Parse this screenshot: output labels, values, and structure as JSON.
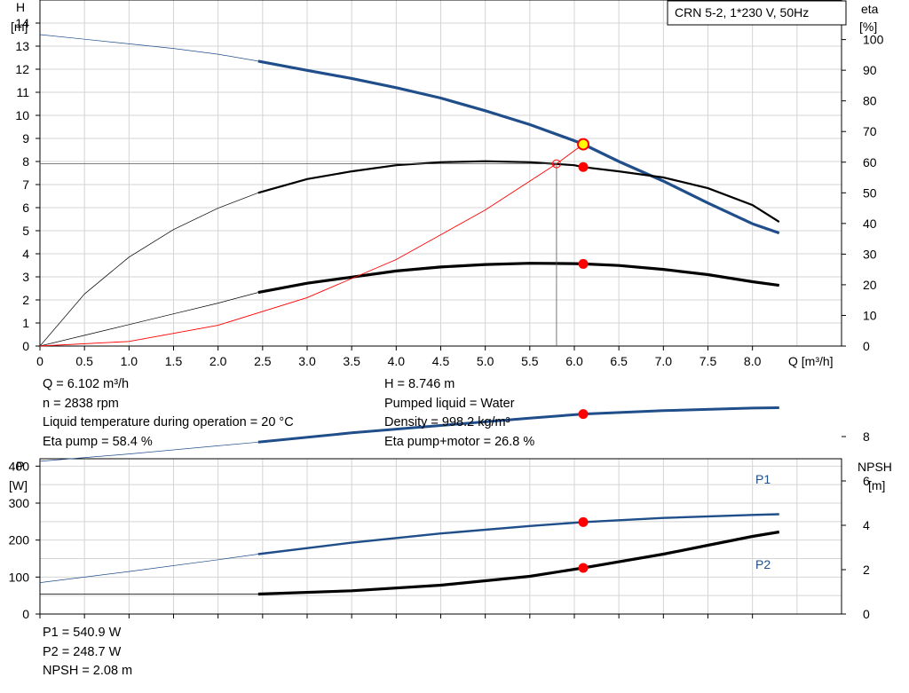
{
  "chart_data": [
    {
      "type": "line",
      "title": "CRN 5-2, 1*230 V, 50Hz",
      "xlabel": "Q [m³/h]",
      "ylabel_left": [
        "H",
        "[m]"
      ],
      "ylabel_right": [
        "eta",
        "[%]"
      ],
      "xlim": [
        0,
        9.0
      ],
      "ylim_left": [
        0,
        15
      ],
      "ylim_right": [
        0,
        100
      ],
      "grid": true,
      "x_ticks": [
        "0",
        "0.5",
        "1.0",
        "1.5",
        "2.0",
        "2.5",
        "3.0",
        "3.5",
        "4.0",
        "4.5",
        "5.0",
        "5.5",
        "6.0",
        "6.5",
        "7.0",
        "7.5",
        "8.0"
      ],
      "y_ticks_left": [
        "0",
        "1",
        "2",
        "3",
        "4",
        "5",
        "6",
        "7",
        "8",
        "9",
        "10",
        "11",
        "12",
        "13",
        "14"
      ],
      "y_ticks_right": [
        "0",
        "10",
        "20",
        "30",
        "40",
        "50",
        "60",
        "70",
        "80",
        "90",
        "100"
      ],
      "series": [
        {
          "id": "head",
          "axis": "left",
          "color": "#1f4e8a",
          "x": [
            0,
            0.5,
            1.0,
            1.5,
            2.0,
            2.45,
            3.0,
            3.5,
            4.0,
            4.5,
            5.0,
            5.5,
            6.0,
            6.1,
            6.5,
            7.0,
            7.5,
            8.0,
            8.3
          ],
          "y": [
            13.5,
            13.3,
            13.1,
            12.9,
            12.65,
            12.35,
            11.95,
            11.6,
            11.2,
            10.75,
            10.2,
            9.6,
            8.9,
            8.75,
            8.0,
            7.15,
            6.2,
            5.3,
            4.9
          ]
        },
        {
          "id": "eta-pump",
          "axis": "right",
          "color": "#000000",
          "x": [
            0,
            0.5,
            1.0,
            1.5,
            2.0,
            2.45,
            3.0,
            3.5,
            4.0,
            4.5,
            5.0,
            5.5,
            6.0,
            6.1,
            6.5,
            7.0,
            7.5,
            8.0,
            8.3
          ],
          "y": [
            0,
            17,
            29,
            38,
            45,
            50,
            54.5,
            57,
            59,
            60,
            60.3,
            60,
            59,
            58.4,
            57,
            55,
            51.5,
            46,
            40.5
          ]
        },
        {
          "id": "eta-pump-motor",
          "axis": "right",
          "color": "#000000",
          "x": [
            0,
            0.5,
            1.0,
            1.5,
            2.0,
            2.45,
            3.0,
            3.5,
            4.0,
            4.5,
            5.0,
            5.5,
            6.0,
            6.1,
            6.5,
            7.0,
            7.5,
            8.0,
            8.3
          ],
          "y": [
            0,
            3.5,
            7,
            10.5,
            14,
            17.5,
            20.5,
            22.5,
            24.5,
            25.8,
            26.6,
            27,
            26.9,
            26.8,
            26.3,
            25,
            23.3,
            21,
            19.8
          ]
        },
        {
          "id": "system-curve",
          "axis": "left",
          "color": "#ff0000",
          "x": [
            0,
            1.0,
            2.0,
            3.0,
            4.0,
            5.0,
            5.8,
            6.1
          ],
          "y": [
            0,
            0.2,
            0.9,
            2.1,
            3.75,
            5.9,
            7.9,
            8.75
          ]
        }
      ],
      "duty_point": {
        "x": 6.1,
        "y": 8.746
      },
      "eta_points": [
        58.4,
        26.8
      ],
      "requested_point": {
        "x": 5.8,
        "y": 7.9
      }
    },
    {
      "type": "line",
      "ylabel_left": [
        "P",
        "[W]"
      ],
      "ylabel_right": [
        "NPSH",
        "[m]"
      ],
      "xlim": [
        0,
        9.0
      ],
      "ylim_left": [
        0,
        600
      ],
      "ylim_right": [
        0,
        12
      ],
      "grid": true,
      "y_ticks_left": [
        "0",
        "100",
        "200",
        "300",
        "400"
      ],
      "y_ticks_right": [
        "0",
        "2",
        "4",
        "6",
        "8"
      ],
      "series": [
        {
          "id": "p1",
          "name": "P1",
          "axis": "left",
          "color": "#1f4e8a",
          "x": [
            0,
            1.0,
            2.0,
            2.45,
            3.5,
            4.5,
            5.5,
            6.1,
            7.0,
            8.0,
            8.3
          ],
          "y": [
            413,
            433,
            455,
            465,
            490,
            510,
            530,
            540.9,
            550,
            557,
            558
          ]
        },
        {
          "id": "p2",
          "name": "P2",
          "axis": "left",
          "color": "#1f4e8a",
          "x": [
            0,
            1.0,
            2.0,
            2.45,
            3.5,
            4.5,
            5.5,
            6.1,
            7.0,
            8.0,
            8.3
          ],
          "y": [
            85,
            115,
            147,
            162,
            193,
            218,
            238,
            248.7,
            260,
            268,
            270
          ]
        },
        {
          "id": "npsh",
          "axis": "right",
          "color": "#000000",
          "x": [
            0,
            1.0,
            2.0,
            2.45,
            3.5,
            4.5,
            5.5,
            6.1,
            7.0,
            7.5,
            8.0,
            8.3
          ],
          "y": [
            0.9,
            0.9,
            0.9,
            0.9,
            1.05,
            1.3,
            1.7,
            2.08,
            2.7,
            3.1,
            3.5,
            3.7
          ]
        }
      ],
      "points": {
        "x": 6.1,
        "p1": 540.9,
        "p2": 248.7,
        "npsh": 2.08
      }
    }
  ],
  "info_top_left": [
    "Q = 6.102 m³/h",
    "n = 2838 rpm",
    "Liquid temperature during operation = 20 °C",
    "Eta pump = 58.4 %"
  ],
  "info_top_right": [
    "H = 8.746 m",
    "Pumped liquid = Water",
    "Density = 998.2 kg/m³",
    "Eta pump+motor = 26.8 %"
  ],
  "info_bottom": [
    "P1 = 540.9 W",
    "P2 = 248.7 W",
    "NPSH = 2.08 m"
  ]
}
